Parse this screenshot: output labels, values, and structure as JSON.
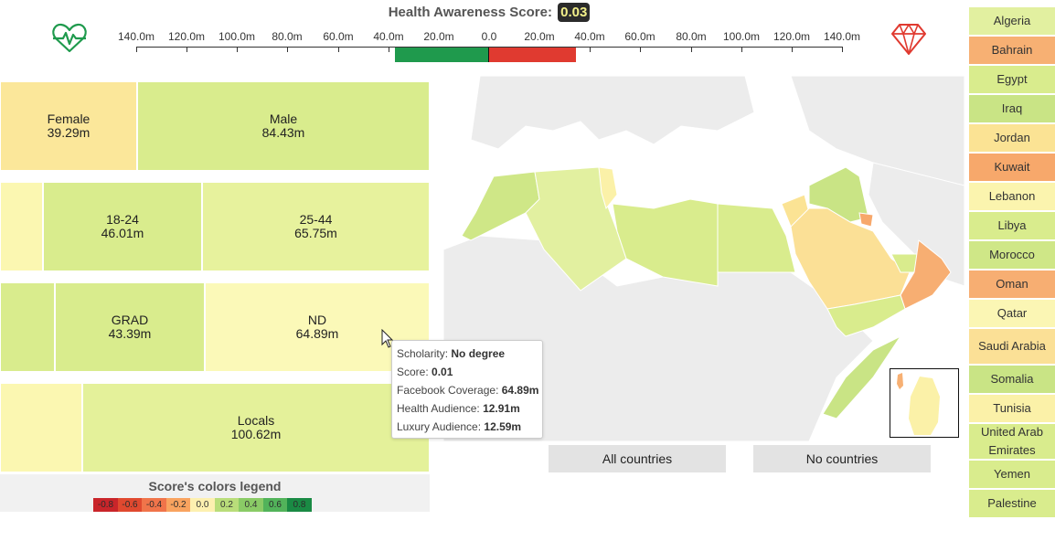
{
  "header": {
    "score_label": "Health Awareness Score:",
    "score_value": "0.03",
    "axis_ticks": [
      "140.0m",
      "120.0m",
      "100.0m",
      "80.0m",
      "60.0m",
      "40.0m",
      "20.0m",
      "0.0",
      "20.0m",
      "40.0m",
      "60.0m",
      "80.0m",
      "100.0m",
      "120.0m",
      "140.0m"
    ],
    "health_bar_value_m": 37.5,
    "luxury_bar_value_m": 34.5,
    "health_icon": "heartbeat-icon",
    "luxury_icon": "gem-icon",
    "colors": {
      "health": "#1f9a4d",
      "luxury": "#e03a30",
      "badge_bg": "#2b2b2b",
      "badge_text": "#f3f08a"
    }
  },
  "treemap": {
    "gender": [
      {
        "label": "Female",
        "value": "39.29m",
        "color": "#fbe79a"
      },
      {
        "label": "Male",
        "value": "84.43m",
        "color": "#d9ec8d"
      }
    ],
    "age": [
      {
        "label": "",
        "value": "",
        "color": "#fbf7b1"
      },
      {
        "label": "18-24",
        "value": "46.01m",
        "color": "#d9ec8d"
      },
      {
        "label": "25-44",
        "value": "65.75m",
        "color": "#e7f29d"
      }
    ],
    "scholarity": [
      {
        "label": "",
        "value": "",
        "color": "#d9ec8d"
      },
      {
        "label": "GRAD",
        "value": "43.39m",
        "color": "#d9ec8d"
      },
      {
        "label": "ND",
        "value": "64.89m",
        "color": "#fbf9b8"
      }
    ],
    "residency": [
      {
        "label": "",
        "value": "",
        "color": "#fbf7b1"
      },
      {
        "label": "Locals",
        "value": "100.62m",
        "color": "#e4f19a"
      }
    ]
  },
  "legend": {
    "title": "Score's colors legend",
    "cells": [
      {
        "label": "-0.8",
        "color": "#c9252a"
      },
      {
        "label": "-0.6",
        "color": "#e0492f"
      },
      {
        "label": "-0.4",
        "color": "#f0744a"
      },
      {
        "label": "-0.2",
        "color": "#f9a35f"
      },
      {
        "label": "0.0",
        "color": "#fdf0b0"
      },
      {
        "label": "0.2",
        "color": "#b9dd7a"
      },
      {
        "label": "0.4",
        "color": "#8acb66"
      },
      {
        "label": "0.6",
        "color": "#52b35a"
      },
      {
        "label": "0.8",
        "color": "#1a8a44"
      }
    ]
  },
  "tooltip": {
    "rows": [
      {
        "key": "Scholarity: ",
        "val": "No degree"
      },
      {
        "key": "Score: ",
        "val": "0.01"
      },
      {
        "key": "Facebook Coverage: ",
        "val": "64.89m"
      },
      {
        "key": "Health Audience: ",
        "val": "12.91m"
      },
      {
        "key": "Luxury Audience: ",
        "val": "12.59m"
      }
    ]
  },
  "map": {
    "buttons": {
      "all": "All countries",
      "none": "No countries"
    }
  },
  "countries": [
    {
      "name": "Algeria",
      "color": "#e2f0a0"
    },
    {
      "name": "Bahrain",
      "color": "#f7b073"
    },
    {
      "name": "Egypt",
      "color": "#d9ec8d"
    },
    {
      "name": "Iraq",
      "color": "#c9e485"
    },
    {
      "name": "Jordan",
      "color": "#fbe394"
    },
    {
      "name": "Kuwait",
      "color": "#f7a86b"
    },
    {
      "name": "Lebanon",
      "color": "#fbf4ae"
    },
    {
      "name": "Libya",
      "color": "#d9ec8d"
    },
    {
      "name": "Morocco",
      "color": "#cfe787"
    },
    {
      "name": "Oman",
      "color": "#f7ae72"
    },
    {
      "name": "Qatar",
      "color": "#fbf6b4"
    },
    {
      "name": "Saudi Arabia",
      "color": "#fbe096"
    },
    {
      "name": "Somalia",
      "color": "#c9e485"
    },
    {
      "name": "Tunisia",
      "color": "#fbf1a8"
    },
    {
      "name": "United Arab Emirates",
      "color": "#d9ec8d"
    },
    {
      "name": "Yemen",
      "color": "#d9ec8d"
    },
    {
      "name": "Palestine",
      "color": "#d9ec8d"
    }
  ]
}
